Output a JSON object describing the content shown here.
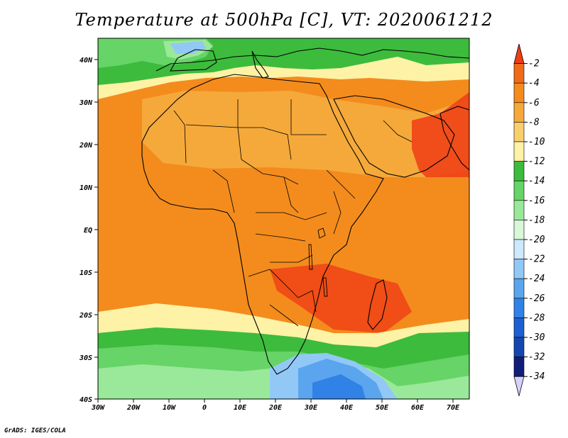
{
  "title": "Temperature at 500hPa [C], VT: 2020061212",
  "credit": "GrADS: IGES/COLA",
  "lat_labels": [
    "40N",
    "30N",
    "20N",
    "10N",
    "EQ",
    "10S",
    "20S",
    "30S",
    "40S"
  ],
  "lon_labels": [
    "30W",
    "20W",
    "10W",
    "0",
    "10E",
    "20E",
    "30E",
    "40E",
    "50E",
    "60E",
    "70E"
  ],
  "colorbar": {
    "levels": [
      "-2",
      "-4",
      "-6",
      "-8",
      "-10",
      "-12",
      "-14",
      "-16",
      "-18",
      "-20",
      "-22",
      "-24",
      "-26",
      "-28",
      "-30",
      "-32",
      "-34"
    ],
    "colors": [
      "#ef3d16",
      "#f06a1a",
      "#f38c1d",
      "#f5a93a",
      "#f9cf6e",
      "#fdf2a6",
      "#3dbb3d",
      "#66d466",
      "#9ae89a",
      "#d8f8d8",
      "#cde9fd",
      "#92c8f6",
      "#5ba5ee",
      "#3182e6",
      "#1e60d1",
      "#1546b0",
      "#101e78",
      "#d6d2ff"
    ]
  }
}
